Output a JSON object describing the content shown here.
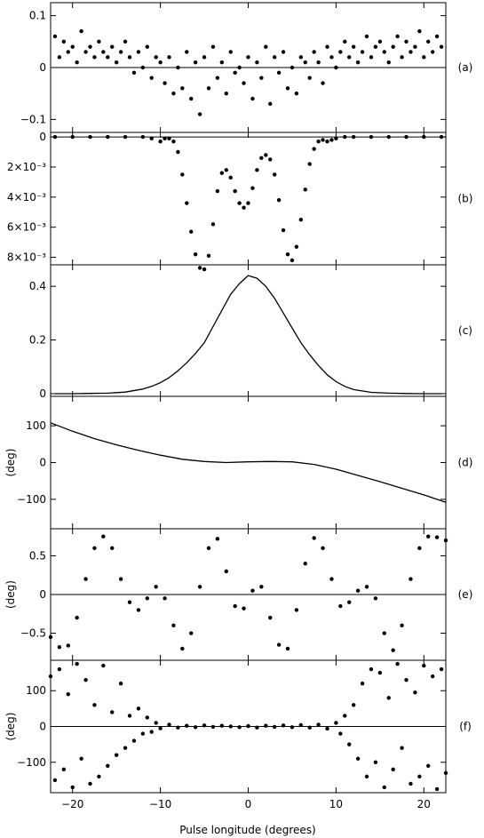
{
  "chart_data": {
    "type": "scatter",
    "xlabel": "Pulse longitude (degrees)",
    "xlim": [
      -22.5,
      22.5
    ],
    "xticks": [
      -20,
      -10,
      0,
      10,
      20
    ],
    "xtick_labels": [
      "−20",
      "−10",
      "0",
      "10",
      "20"
    ],
    "panels": [
      {
        "tag": "(a)",
        "type": "scatter",
        "ylabel": "",
        "ylim": [
          -0.125,
          0.125
        ],
        "yticks": [
          0.1,
          0,
          -0.1
        ],
        "ytick_labels": [
          "0.1",
          "0",
          "−0.1"
        ],
        "zero_line": true,
        "x": [
          -22,
          -21.5,
          -21,
          -20.5,
          -20,
          -19.5,
          -19,
          -18.5,
          -18,
          -17.5,
          -17,
          -16.5,
          -16,
          -15.5,
          -15,
          -14.5,
          -14,
          -13.5,
          -13,
          -12.5,
          -12,
          -11.5,
          -11,
          -10.5,
          -10,
          -9.5,
          -9,
          -8.5,
          -8,
          -7.5,
          -7,
          -6.5,
          -6,
          -5.5,
          -5,
          -4.5,
          -4,
          -3.5,
          -3,
          -2.5,
          -2,
          -1.5,
          -1,
          -0.5,
          0,
          0.5,
          1,
          1.5,
          2,
          2.5,
          3,
          3.5,
          4,
          4.5,
          5,
          5.5,
          6,
          6.5,
          7,
          7.5,
          8,
          8.5,
          9,
          9.5,
          10,
          10.5,
          11,
          11.5,
          12,
          12.5,
          13,
          13.5,
          14,
          14.5,
          15,
          15.5,
          16,
          16.5,
          17,
          17.5,
          18,
          18.5,
          19,
          19.5,
          20,
          20.5,
          21,
          21.5,
          22
        ],
        "values": [
          0.06,
          0.02,
          0.05,
          0.03,
          0.04,
          0.01,
          0.07,
          0.03,
          0.04,
          0.02,
          0.05,
          0.03,
          0.02,
          0.04,
          0.01,
          0.03,
          0.05,
          0.02,
          -0.01,
          0.03,
          0.0,
          0.04,
          -0.02,
          0.02,
          0.01,
          -0.03,
          0.02,
          -0.05,
          0.0,
          -0.04,
          0.03,
          -0.06,
          0.01,
          -0.09,
          0.02,
          -0.04,
          0.04,
          -0.02,
          0.01,
          -0.05,
          0.03,
          -0.01,
          0.0,
          -0.03,
          0.02,
          -0.06,
          0.01,
          -0.02,
          0.04,
          -0.07,
          0.02,
          -0.01,
          0.03,
          -0.04,
          0.0,
          -0.05,
          0.02,
          0.01,
          -0.02,
          0.03,
          0.01,
          -0.03,
          0.04,
          0.02,
          0.0,
          0.03,
          0.05,
          0.02,
          0.04,
          0.01,
          0.03,
          0.06,
          0.02,
          0.04,
          0.05,
          0.03,
          0.01,
          0.04,
          0.06,
          0.02,
          0.05,
          0.03,
          0.04,
          0.07,
          0.02,
          0.05,
          0.03,
          0.06,
          0.04
        ]
      },
      {
        "tag": "(b)",
        "type": "scatter",
        "ylabel": "",
        "ylim": [
          0.0085,
          -0.0003
        ],
        "yticks": [
          0,
          0.002,
          0.004,
          0.006,
          0.008
        ],
        "ytick_labels": [
          "0",
          "2×10⁻³",
          "4×10⁻³",
          "6×10⁻³",
          "8×10⁻³"
        ],
        "zero_line": true,
        "x": [
          -22,
          -20,
          -18,
          -16,
          -14,
          -12,
          -11,
          -10,
          -9.5,
          -9,
          -8.5,
          -8,
          -7.5,
          -7,
          -6.5,
          -6,
          -5.5,
          -5,
          -4.5,
          -4,
          -3.5,
          -3,
          -2.5,
          -2,
          -1.5,
          -1,
          -0.5,
          0,
          0.5,
          1,
          1.5,
          2,
          2.5,
          3,
          3.5,
          4,
          4.5,
          5,
          5.5,
          6,
          6.5,
          7,
          7.5,
          8,
          8.5,
          9,
          9.5,
          10,
          11,
          12,
          14,
          16,
          18,
          20,
          22
        ],
        "values": [
          0,
          0,
          0,
          0,
          0,
          0,
          0.0001,
          0.0003,
          0.0001,
          0.0001,
          0.0003,
          0.001,
          0.0025,
          0.0044,
          0.0063,
          0.0078,
          0.0087,
          0.0088,
          0.0079,
          0.0058,
          0.0036,
          0.0024,
          0.0022,
          0.0027,
          0.0036,
          0.0044,
          0.0047,
          0.0044,
          0.0034,
          0.0022,
          0.0014,
          0.0012,
          0.0015,
          0.0025,
          0.0042,
          0.0062,
          0.0078,
          0.0082,
          0.0073,
          0.0055,
          0.0035,
          0.0018,
          0.0008,
          0.0003,
          0.0002,
          0.0003,
          0.0002,
          0.0001,
          0,
          0,
          0,
          0,
          0,
          0,
          0
        ]
      },
      {
        "tag": "(c)",
        "type": "line",
        "ylabel": "",
        "ylim": [
          -0.01,
          0.48
        ],
        "yticks": [
          0,
          0.2,
          0.4
        ],
        "ytick_labels": [
          "0",
          "0.2",
          "0.4"
        ],
        "zero_line": false,
        "x": [
          -22,
          -20,
          -18,
          -16,
          -14,
          -12,
          -11,
          -10,
          -9,
          -8,
          -7,
          -6,
          -5,
          -4,
          -3,
          -2,
          -1,
          0,
          1,
          2,
          3,
          4,
          5,
          6,
          7,
          8,
          9,
          10,
          11,
          12,
          14,
          16,
          18,
          20,
          22
        ],
        "values": [
          0,
          0,
          0.001,
          0.002,
          0.006,
          0.017,
          0.027,
          0.041,
          0.06,
          0.085,
          0.115,
          0.15,
          0.19,
          0.25,
          0.31,
          0.37,
          0.41,
          0.44,
          0.43,
          0.4,
          0.355,
          0.3,
          0.245,
          0.19,
          0.145,
          0.105,
          0.07,
          0.045,
          0.027,
          0.015,
          0.005,
          0.002,
          0.0005,
          0,
          0
        ]
      },
      {
        "tag": "(d)",
        "type": "line",
        "ylabel": "(deg)",
        "ylim": [
          -180,
          180
        ],
        "yticks": [
          100,
          0,
          -100
        ],
        "ytick_labels": [
          "100",
          "0",
          "−100"
        ],
        "zero_line": false,
        "x": [
          -22.5,
          -20,
          -17.5,
          -15,
          -12.5,
          -10,
          -7.5,
          -5,
          -2.5,
          0,
          2.5,
          5,
          7.5,
          10,
          12.5,
          15,
          17.5,
          20,
          22.5
        ],
        "values": [
          108,
          85,
          65,
          48,
          33,
          20,
          9,
          3,
          0,
          2,
          3,
          2,
          -5,
          -18,
          -35,
          -52,
          -70,
          -88,
          -108
        ]
      },
      {
        "tag": "(e)",
        "type": "scatter",
        "ylabel": "(deg)",
        "ylim": [
          -0.85,
          0.85
        ],
        "yticks": [
          0.5,
          0,
          -0.5
        ],
        "ytick_labels": [
          "0.5",
          "0",
          "−0.5"
        ],
        "zero_line": true,
        "x": [
          -22.5,
          -21.5,
          -20.5,
          -19.5,
          -18.5,
          -17.5,
          -16.5,
          -15.5,
          -14.5,
          -13.5,
          -12.5,
          -11.5,
          -10.5,
          -9.5,
          -8.5,
          -7.5,
          -6.5,
          -5.5,
          -4.5,
          -3.5,
          -2.5,
          -1.5,
          -0.5,
          0.5,
          1.5,
          2.5,
          3.5,
          4.5,
          5.5,
          6.5,
          7.5,
          8.5,
          9.5,
          10.5,
          11.5,
          12.5,
          13.5,
          14.5,
          15.5,
          16.5,
          17.5,
          18.5,
          19.5,
          20.5,
          21.5,
          22.5
        ],
        "values": [
          -0.55,
          -0.68,
          -0.66,
          -0.3,
          0.2,
          0.6,
          0.75,
          0.6,
          0.2,
          -0.1,
          -0.2,
          -0.05,
          0.1,
          -0.05,
          -0.4,
          -0.7,
          -0.5,
          0.1,
          0.6,
          0.72,
          0.3,
          -0.15,
          -0.18,
          0.05,
          0.1,
          -0.3,
          -0.65,
          -0.7,
          -0.2,
          0.4,
          0.73,
          0.6,
          0.2,
          -0.15,
          -0.1,
          0.05,
          0.1,
          -0.05,
          -0.5,
          -0.72,
          -0.4,
          0.2,
          0.6,
          0.75,
          0.74,
          0.7
        ]
      },
      {
        "tag": "(f)",
        "type": "scatter",
        "ylabel": "(deg)",
        "ylim": [
          -185,
          185
        ],
        "yticks": [
          100,
          0,
          -100
        ],
        "ytick_labels": [
          "100",
          "0",
          "−100"
        ],
        "zero_line": true,
        "x": [
          -22.5,
          -22,
          -21.5,
          -21,
          -20.5,
          -20,
          -19.5,
          -19,
          -18.5,
          -18,
          -17.5,
          -17,
          -16.5,
          -16,
          -15.5,
          -15,
          -14.5,
          -14,
          -13.5,
          -13,
          -12.5,
          -12,
          -11.5,
          -11,
          -10.5,
          -10,
          -9,
          -8,
          -7,
          -6,
          -5,
          -4,
          -3,
          -2,
          -1,
          0,
          1,
          2,
          3,
          4,
          5,
          6,
          7,
          8,
          9,
          10,
          10.5,
          11,
          11.5,
          12,
          12.5,
          13,
          13.5,
          14,
          14.5,
          15,
          15.5,
          16,
          16.5,
          17,
          17.5,
          18,
          18.5,
          19,
          19.5,
          20,
          20.5,
          21,
          21.5,
          22,
          22.5
        ],
        "values": [
          140,
          -150,
          160,
          -120,
          90,
          -170,
          175,
          -90,
          130,
          -160,
          60,
          -140,
          170,
          -110,
          40,
          -80,
          120,
          -60,
          30,
          -40,
          50,
          -20,
          25,
          -15,
          10,
          -5,
          5,
          -3,
          2,
          -2,
          3,
          -1,
          2,
          0,
          -2,
          1,
          -3,
          2,
          -1,
          3,
          -2,
          4,
          -3,
          5,
          -6,
          10,
          -20,
          30,
          -50,
          60,
          -90,
          120,
          -140,
          160,
          -100,
          150,
          -170,
          80,
          -120,
          175,
          -60,
          130,
          -160,
          95,
          -140,
          170,
          -110,
          140,
          -175,
          160,
          -130
        ]
      }
    ]
  }
}
